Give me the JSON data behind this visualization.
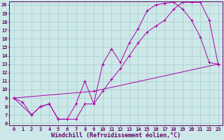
{
  "background_color": "#cce8e8",
  "line_color": "#aa00aa",
  "grid_color": "#aacccc",
  "xlabel": "Windchill (Refroidissement éolien,°C)",
  "xlim": [
    -0.5,
    23.5
  ],
  "ylim": [
    5.8,
    20.4
  ],
  "xticks": [
    0,
    1,
    2,
    3,
    4,
    5,
    6,
    7,
    8,
    9,
    10,
    11,
    12,
    13,
    14,
    15,
    16,
    17,
    18,
    19,
    20,
    21,
    22,
    23
  ],
  "yticks": [
    6,
    7,
    8,
    9,
    10,
    11,
    12,
    13,
    14,
    15,
    16,
    17,
    18,
    19,
    20
  ],
  "curve1_x": [
    0,
    1,
    2,
    3,
    4,
    5,
    6,
    7,
    8,
    9,
    10,
    11,
    12,
    13,
    14,
    15,
    16,
    17,
    18,
    19,
    20,
    21,
    22,
    23
  ],
  "curve1_y": [
    9.0,
    8.5,
    7.0,
    8.0,
    8.3,
    6.5,
    6.5,
    8.3,
    11.0,
    8.3,
    13.0,
    14.8,
    13.2,
    15.5,
    17.2,
    19.3,
    20.0,
    20.2,
    20.3,
    19.5,
    18.2,
    16.2,
    13.2,
    13.0
  ],
  "curve2_x": [
    0,
    2,
    3,
    4,
    5,
    6,
    7,
    8,
    9,
    10,
    11,
    12,
    13,
    14,
    15,
    16,
    17,
    18,
    19,
    20,
    21,
    22,
    23
  ],
  "curve2_y": [
    9.0,
    7.0,
    8.0,
    8.3,
    6.5,
    6.5,
    6.5,
    8.3,
    8.3,
    9.8,
    11.2,
    12.5,
    14.0,
    15.5,
    16.8,
    17.5,
    18.2,
    19.5,
    20.3,
    20.3,
    20.3,
    18.2,
    13.0
  ],
  "curve3_x": [
    0,
    9,
    23
  ],
  "curve3_y": [
    9.0,
    9.8,
    13.0
  ],
  "font_color": "#660066",
  "tick_fontsize": 5.0,
  "xlabel_fontsize": 6.0
}
